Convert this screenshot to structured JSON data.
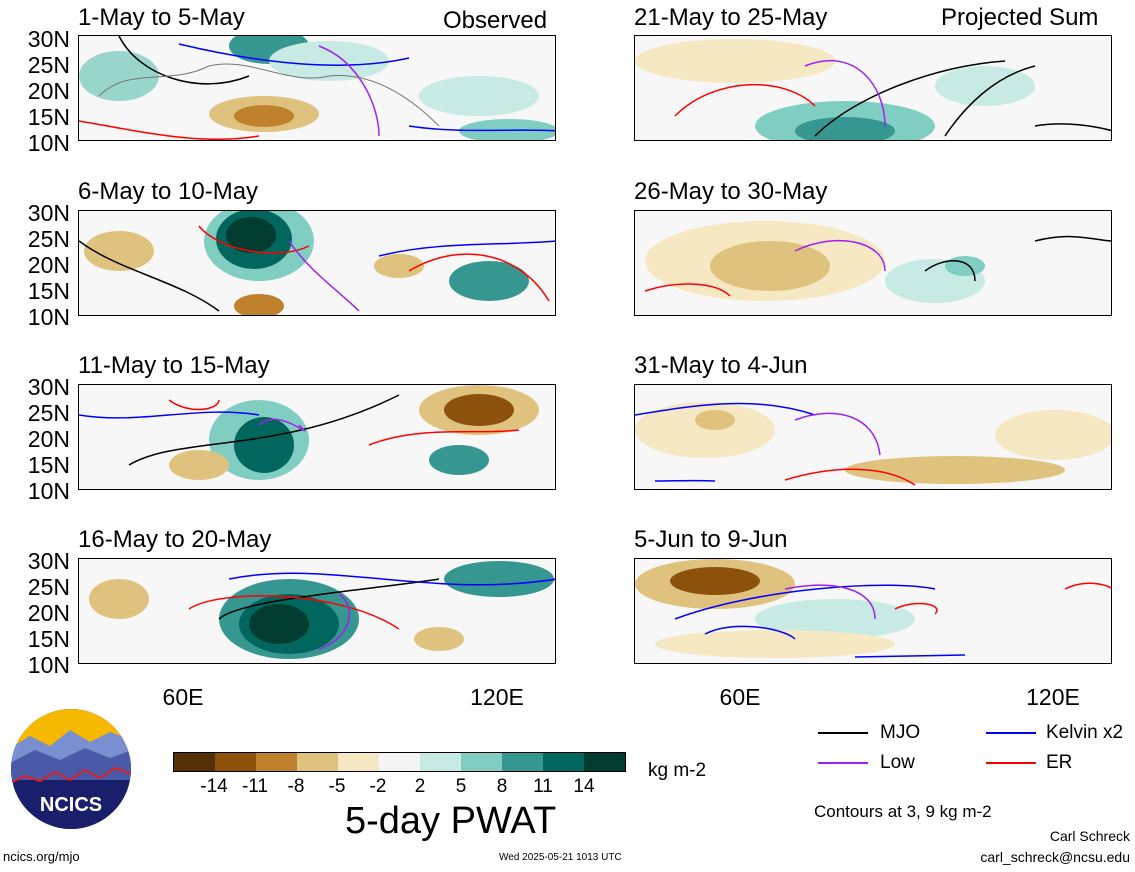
{
  "panels": [
    {
      "title": "1-May to 5-May",
      "corner": "Observed"
    },
    {
      "title": "6-May to 10-May",
      "corner": ""
    },
    {
      "title": "11-May to 15-May",
      "corner": ""
    },
    {
      "title": "16-May to 20-May",
      "corner": ""
    },
    {
      "title": "21-May to 25-May",
      "corner": "Projected Sum"
    },
    {
      "title": "26-May to 30-May",
      "corner": ""
    },
    {
      "title": "31-May to 4-Jun",
      "corner": ""
    },
    {
      "title": "5-Jun to 9-Jun",
      "corner": ""
    }
  ],
  "lat_labels": [
    "30N",
    "25N",
    "20N",
    "15N",
    "10N"
  ],
  "lon_labels": [
    "60E",
    "120E"
  ],
  "colorbar": {
    "ticks": [
      "-14",
      "-11",
      "-8",
      "-5",
      "-2",
      "2",
      "5",
      "8",
      "11",
      "14"
    ],
    "unit": "kg m-2",
    "title": "5-day PWAT",
    "colors": [
      "#543005",
      "#8c510a",
      "#bf812d",
      "#dfc27d",
      "#f6e8c3",
      "#f5f5f5",
      "#c7eae5",
      "#80cdc1",
      "#35978f",
      "#01665e",
      "#003c30"
    ]
  },
  "legend": {
    "mjo": "MJO",
    "kelvin": "Kelvin x2",
    "low": "Low",
    "er": "ER",
    "colors": {
      "mjo": "#000000",
      "kelvin": "#0000ff",
      "low": "#a020f0",
      "er": "#ff0000"
    },
    "contours_note": "Contours at 3, 9 kg m-2"
  },
  "logo": {
    "text": "NCICS"
  },
  "footer": {
    "url": "ncics.org/mjo",
    "timestamp": "Wed 2025-05-21 1013 UTC",
    "author": "Carl Schreck",
    "email": "carl_schreck@ncsu.edu"
  }
}
